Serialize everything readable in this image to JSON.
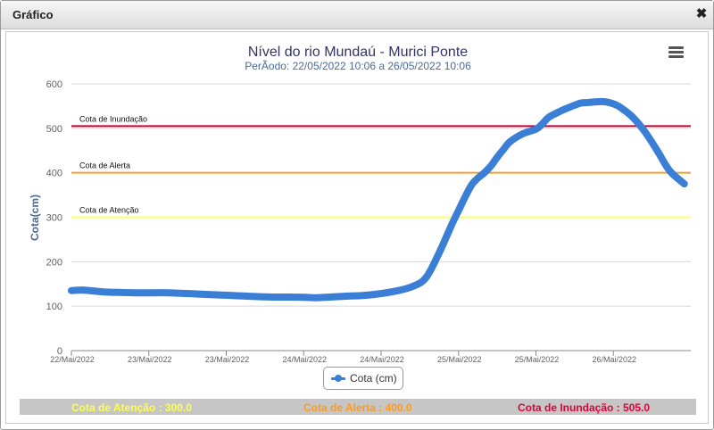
{
  "window": {
    "title": "Gráfico",
    "close_icon": "close-icon"
  },
  "chart_menu_icon": "hamburger-menu-icon",
  "chart_data": {
    "type": "line",
    "title": "Nível do rio Mundaú - Murici Ponte",
    "subtitle": "PerÃodo: 22/05/2022 10:06 a 26/05/2022 10:06",
    "xlabel": "",
    "ylabel": "Cota(cm)",
    "ylim": [
      0,
      600
    ],
    "yticks": [
      0,
      100,
      200,
      300,
      400,
      500,
      600
    ],
    "xlim": [
      0,
      96
    ],
    "xtick_labels": [
      "22/Mai/2022",
      "23/Mai/2022",
      "23/Mai/2022",
      "24/Mai/2022",
      "24/Mai/2022",
      "25/Mai/2022",
      "25/Mai/2022",
      "26/Mai/2022"
    ],
    "grid": true,
    "legend_placement": "bottom-center",
    "series": [
      {
        "name": "Cota (cm)",
        "color": "#3a7fd5",
        "x": [
          0,
          2,
          5,
          10,
          15,
          20,
          25,
          30,
          36,
          38,
          42,
          46,
          50,
          53,
          55,
          57,
          59,
          60,
          61,
          62,
          63,
          64,
          65,
          66,
          67,
          68,
          70,
          72,
          73,
          74,
          76,
          78,
          79,
          80,
          82,
          83,
          84,
          85,
          87,
          89,
          91,
          92,
          93,
          95
        ],
        "values": [
          135,
          136,
          132,
          130,
          130,
          127,
          124,
          121,
          120,
          119,
          122,
          125,
          133,
          145,
          165,
          220,
          285,
          315,
          345,
          372,
          388,
          400,
          415,
          435,
          453,
          470,
          488,
          498,
          510,
          525,
          540,
          552,
          557,
          558,
          560,
          559,
          555,
          548,
          525,
          490,
          445,
          420,
          400,
          375
        ]
      }
    ],
    "reference_lines": [
      {
        "label": "Cota de Atenção",
        "value": 300,
        "color": "#ffff66"
      },
      {
        "label": "Cota de Alerta",
        "value": 400,
        "color": "#f0a030"
      },
      {
        "label": "Cota de Inundação",
        "value": 505,
        "color": "#cc0033"
      }
    ]
  },
  "footer": {
    "attention": {
      "text": "Cota de Atenção : 300.0",
      "color": "#ffff44"
    },
    "alert": {
      "text": "Cota de Alerta : 400.0",
      "color": "#ff9a1a"
    },
    "flood": {
      "text": "Cota de Inundação : 505.0",
      "color": "#e0003c"
    }
  }
}
